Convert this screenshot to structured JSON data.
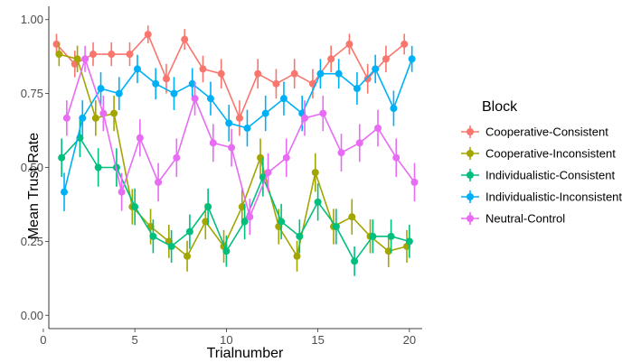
{
  "chart_data": {
    "type": "line",
    "title": "",
    "xlabel": "Trialnumber",
    "ylabel": "Mean Trust Rate",
    "xlim": [
      0.3,
      20.7
    ],
    "ylim": [
      -0.045,
      1.045
    ],
    "x_ticks": [
      0,
      5,
      10,
      15,
      20
    ],
    "y_ticks": [
      0.0,
      0.25,
      0.5,
      0.75,
      1.0
    ],
    "x_tick_labels": [
      "0",
      "5",
      "10",
      "15",
      "20"
    ],
    "y_tick_labels": [
      "0.00",
      "0.25",
      "0.50",
      "0.75",
      "1.00"
    ],
    "legend_title": "Block",
    "legend_position": "right",
    "dodge": 0.28,
    "x": [
      1,
      2,
      3,
      4,
      5,
      6,
      7,
      8,
      9,
      10,
      11,
      12,
      13,
      14,
      15,
      16,
      17,
      18,
      19,
      20
    ],
    "series": [
      {
        "name": "Cooperative-Consistent",
        "color": "#F8766D",
        "values": [
          0.917,
          0.85,
          0.883,
          0.883,
          0.883,
          0.95,
          0.8,
          0.933,
          0.833,
          0.817,
          0.667,
          0.817,
          0.783,
          0.817,
          0.783,
          0.867,
          0.917,
          0.8,
          0.867,
          0.917
        ],
        "errors": [
          0.035,
          0.045,
          0.04,
          0.04,
          0.04,
          0.03,
          0.05,
          0.035,
          0.045,
          0.05,
          0.06,
          0.05,
          0.05,
          0.05,
          0.05,
          0.045,
          0.035,
          0.05,
          0.045,
          0.035
        ]
      },
      {
        "name": "Cooperative-Inconsistent",
        "color": "#A3A500",
        "values": [
          0.883,
          0.867,
          0.667,
          0.683,
          0.367,
          0.3,
          0.25,
          0.2,
          0.317,
          0.233,
          0.367,
          0.533,
          0.3,
          0.2,
          0.483,
          0.3,
          0.333,
          0.267,
          0.217,
          0.233
        ],
        "errors": [
          0.04,
          0.045,
          0.06,
          0.06,
          0.06,
          0.06,
          0.056,
          0.052,
          0.06,
          0.055,
          0.06,
          0.065,
          0.06,
          0.052,
          0.065,
          0.06,
          0.06,
          0.057,
          0.054,
          0.055
        ]
      },
      {
        "name": "Individualistic-Consistent",
        "color": "#00BF7D",
        "values": [
          0.533,
          0.6,
          0.5,
          0.5,
          0.367,
          0.267,
          0.233,
          0.283,
          0.367,
          0.217,
          0.317,
          0.467,
          0.317,
          0.267,
          0.383,
          0.3,
          0.183,
          0.267,
          0.267,
          0.25
        ],
        "errors": [
          0.065,
          0.065,
          0.065,
          0.065,
          0.062,
          0.057,
          0.055,
          0.058,
          0.062,
          0.053,
          0.06,
          0.065,
          0.06,
          0.057,
          0.063,
          0.06,
          0.05,
          0.057,
          0.057,
          0.056
        ]
      },
      {
        "name": "Individualistic-Inconsistent",
        "color": "#00B0F6",
        "values": [
          0.417,
          0.667,
          0.767,
          0.75,
          0.833,
          0.783,
          0.75,
          0.783,
          0.733,
          0.65,
          0.633,
          0.683,
          0.733,
          0.683,
          0.817,
          0.817,
          0.767,
          0.833,
          0.7,
          0.867
        ],
        "errors": [
          0.065,
          0.06,
          0.055,
          0.056,
          0.048,
          0.053,
          0.056,
          0.053,
          0.057,
          0.062,
          0.062,
          0.06,
          0.057,
          0.06,
          0.05,
          0.05,
          0.055,
          0.048,
          0.06,
          0.044
        ]
      },
      {
        "name": "Neutral-Control",
        "color": "#E76BF3",
        "values": [
          0.667,
          0.867,
          0.683,
          0.417,
          0.6,
          0.45,
          0.533,
          0.733,
          0.583,
          0.567,
          0.333,
          0.483,
          0.533,
          0.667,
          0.683,
          0.55,
          0.583,
          0.633,
          0.533,
          0.45
        ],
        "errors": [
          0.06,
          0.044,
          0.06,
          0.064,
          0.063,
          0.065,
          0.065,
          0.057,
          0.064,
          0.064,
          0.061,
          0.065,
          0.065,
          0.06,
          0.06,
          0.064,
          0.064,
          0.062,
          0.065,
          0.065
        ]
      }
    ]
  }
}
